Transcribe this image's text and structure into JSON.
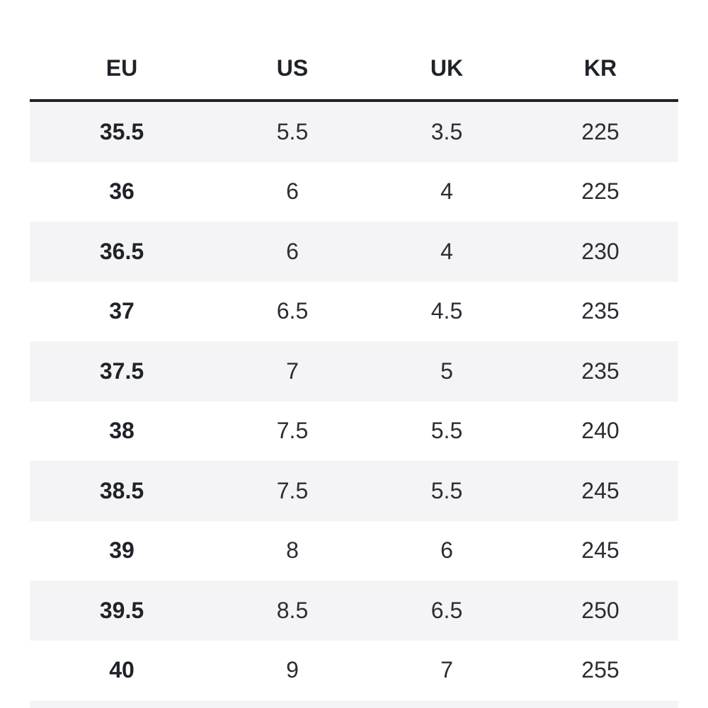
{
  "table": {
    "headers": {
      "eu": "EU",
      "us": "US",
      "uk": "UK",
      "kr": "KR"
    },
    "rows": [
      {
        "eu": "35.5",
        "us": "5.5",
        "uk": "3.5",
        "kr": "225"
      },
      {
        "eu": "36",
        "us": "6",
        "uk": "4",
        "kr": "225"
      },
      {
        "eu": "36.5",
        "us": "6",
        "uk": "4",
        "kr": "230"
      },
      {
        "eu": "37",
        "us": "6.5",
        "uk": "4.5",
        "kr": "235"
      },
      {
        "eu": "37.5",
        "us": "7",
        "uk": "5",
        "kr": "235"
      },
      {
        "eu": "38",
        "us": "7.5",
        "uk": "5.5",
        "kr": "240"
      },
      {
        "eu": "38.5",
        "us": "7.5",
        "uk": "5.5",
        "kr": "245"
      },
      {
        "eu": "39",
        "us": "8",
        "uk": "6",
        "kr": "245"
      },
      {
        "eu": "39.5",
        "us": "8.5",
        "uk": "6.5",
        "kr": "250"
      },
      {
        "eu": "40",
        "us": "9",
        "uk": "7",
        "kr": "255"
      }
    ]
  },
  "colors": {
    "text": "#1f2329",
    "header_rule": "#1f2329",
    "stripe": "#f4f4f6",
    "background": "#ffffff"
  }
}
